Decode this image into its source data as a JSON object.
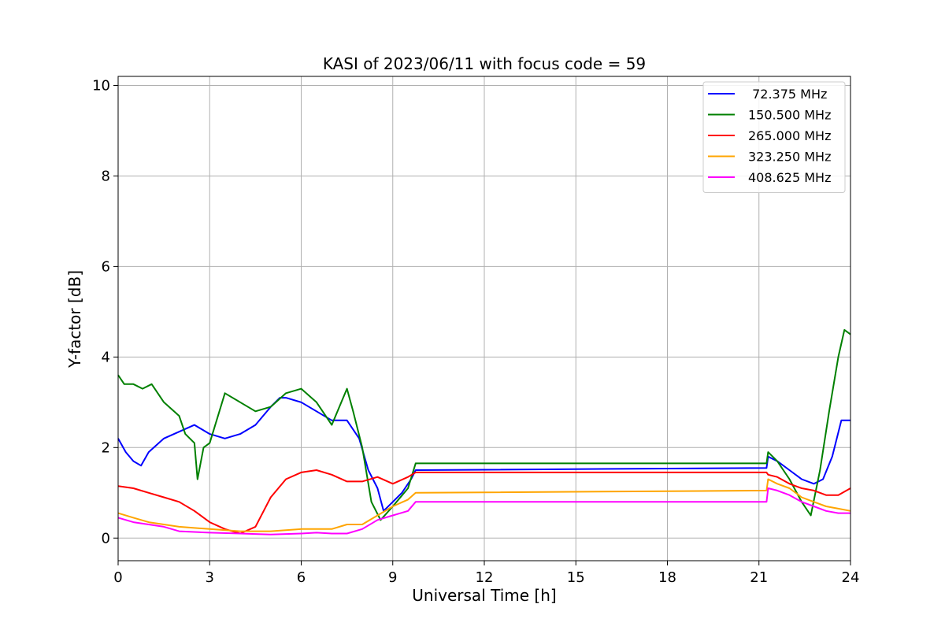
{
  "chart_data": {
    "type": "line",
    "title": "KASI of 2023/06/11 with focus code = 59",
    "xlabel": "Universal Time [h]",
    "ylabel": "Y-factor [dB]",
    "xlim": [
      0,
      24
    ],
    "ylim": [
      -0.5,
      10.2
    ],
    "xticks": [
      0,
      3,
      6,
      9,
      12,
      15,
      18,
      21,
      24
    ],
    "yticks": [
      0,
      2,
      4,
      6,
      8,
      10
    ],
    "grid": true,
    "legend_position": "top-right",
    "series": [
      {
        "name": " 72.375 MHz",
        "color": "#0000ff",
        "x": [
          0,
          0.25,
          0.5,
          0.75,
          1.0,
          1.5,
          2.0,
          2.5,
          3.0,
          3.5,
          4.0,
          4.5,
          5.0,
          5.3,
          5.5,
          6.0,
          6.5,
          7.0,
          7.5,
          7.9,
          8.2,
          8.5,
          8.7,
          9.0,
          9.3,
          9.6,
          9.75,
          21.25,
          21.3,
          21.6,
          22.0,
          22.4,
          22.8,
          23.1,
          23.4,
          23.7,
          24.0
        ],
        "y": [
          2.2,
          1.9,
          1.7,
          1.6,
          1.9,
          2.2,
          2.35,
          2.5,
          2.3,
          2.2,
          2.3,
          2.5,
          2.9,
          3.1,
          3.1,
          3.0,
          2.8,
          2.6,
          2.6,
          2.2,
          1.5,
          1.1,
          0.6,
          0.8,
          1.0,
          1.3,
          1.5,
          1.55,
          1.8,
          1.7,
          1.5,
          1.3,
          1.2,
          1.3,
          1.8,
          2.6,
          2.6
        ]
      },
      {
        "name": "150.500 MHz",
        "color": "#008000",
        "x": [
          0,
          0.2,
          0.5,
          0.8,
          1.1,
          1.5,
          2.0,
          2.2,
          2.5,
          2.6,
          2.8,
          3.0,
          3.5,
          4.0,
          4.5,
          5.0,
          5.5,
          6.0,
          6.5,
          7.0,
          7.5,
          7.7,
          8.0,
          8.3,
          8.6,
          9.0,
          9.5,
          9.75,
          21.25,
          21.3,
          21.6,
          22.0,
          22.4,
          22.7,
          23.0,
          23.3,
          23.6,
          23.8,
          24.0
        ],
        "y": [
          3.6,
          3.4,
          3.4,
          3.3,
          3.4,
          3.0,
          2.7,
          2.3,
          2.1,
          1.3,
          2.0,
          2.1,
          3.2,
          3.0,
          2.8,
          2.9,
          3.2,
          3.3,
          3.0,
          2.5,
          3.3,
          2.8,
          2.0,
          0.8,
          0.4,
          0.7,
          1.1,
          1.65,
          1.65,
          1.9,
          1.7,
          1.3,
          0.8,
          0.5,
          1.5,
          2.8,
          4.0,
          4.6,
          4.5
        ]
      },
      {
        "name": "265.000 MHz",
        "color": "#ff0000",
        "x": [
          0,
          0.5,
          1.0,
          1.5,
          2.0,
          2.5,
          3.0,
          3.5,
          4.0,
          4.5,
          5.0,
          5.5,
          6.0,
          6.5,
          7.0,
          7.5,
          8.0,
          8.5,
          9.0,
          9.5,
          9.75,
          21.25,
          21.3,
          21.6,
          22.0,
          22.4,
          22.8,
          23.2,
          23.6,
          24.0
        ],
        "y": [
          1.15,
          1.1,
          1.0,
          0.9,
          0.8,
          0.6,
          0.35,
          0.2,
          0.1,
          0.25,
          0.9,
          1.3,
          1.45,
          1.5,
          1.4,
          1.25,
          1.25,
          1.35,
          1.2,
          1.35,
          1.45,
          1.45,
          1.4,
          1.35,
          1.2,
          1.1,
          1.05,
          0.95,
          0.95,
          1.1
        ]
      },
      {
        "name": "323.250 MHz",
        "color": "#ffa500",
        "x": [
          0,
          0.5,
          1.0,
          2.0,
          3.0,
          4.0,
          5.0,
          6.0,
          7.0,
          7.5,
          8.0,
          8.5,
          9.0,
          9.5,
          9.75,
          21.25,
          21.3,
          21.6,
          22.0,
          22.4,
          22.8,
          23.2,
          23.6,
          24.0
        ],
        "y": [
          0.55,
          0.45,
          0.35,
          0.25,
          0.2,
          0.15,
          0.15,
          0.2,
          0.2,
          0.3,
          0.3,
          0.5,
          0.7,
          0.85,
          1.0,
          1.05,
          1.3,
          1.2,
          1.1,
          0.9,
          0.8,
          0.7,
          0.65,
          0.6
        ]
      },
      {
        "name": "408.625 MHz",
        "color": "#ff00ff",
        "x": [
          0,
          0.5,
          1.0,
          1.5,
          2.0,
          3.0,
          4.0,
          5.0,
          6.0,
          6.5,
          7.0,
          7.5,
          8.0,
          8.5,
          9.0,
          9.5,
          9.75,
          21.25,
          21.3,
          21.6,
          22.0,
          22.4,
          22.8,
          23.2,
          23.6,
          24.0
        ],
        "y": [
          0.45,
          0.35,
          0.3,
          0.25,
          0.15,
          0.12,
          0.1,
          0.08,
          0.1,
          0.12,
          0.1,
          0.1,
          0.2,
          0.4,
          0.5,
          0.6,
          0.8,
          0.8,
          1.1,
          1.05,
          0.95,
          0.8,
          0.7,
          0.6,
          0.55,
          0.55
        ]
      }
    ]
  }
}
